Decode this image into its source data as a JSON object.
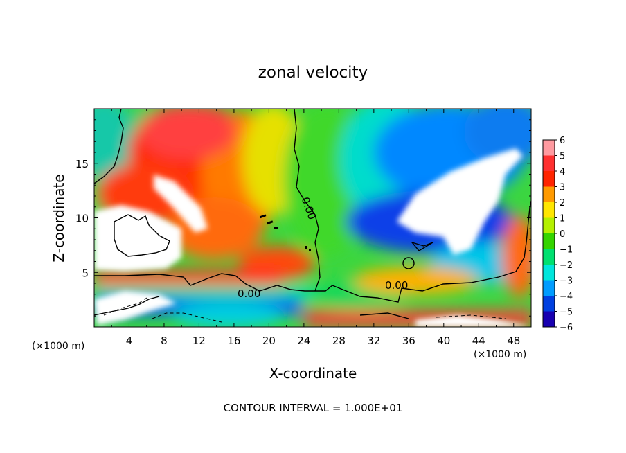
{
  "chart_data": {
    "type": "heatmap",
    "title": "zonal velocity",
    "xlabel": "X-coordinate",
    "ylabel": "Z-coordinate",
    "x_unit_left": "(×1000 m)",
    "x_unit_right": "(×1000 m)",
    "xlim": [
      0,
      50
    ],
    "ylim": [
      0,
      20
    ],
    "x_ticks": [
      4,
      8,
      12,
      16,
      20,
      24,
      28,
      32,
      36,
      40,
      44,
      48
    ],
    "y_ticks": [
      5,
      10,
      15
    ],
    "colorbar": {
      "levels": [
        6,
        5,
        4,
        3,
        2,
        1,
        0,
        -1,
        -2,
        -3,
        -4,
        -5,
        -6
      ],
      "colors": [
        "#ff9aa0",
        "#ff3030",
        "#ff2400",
        "#ff9a00",
        "#ffe600",
        "#b4f000",
        "#34d400",
        "#00e070",
        "#00e6dc",
        "#009cff",
        "#0040e0",
        "#1800b0",
        "#6a00b0"
      ],
      "clipped_color": "#ffffff"
    },
    "contour_labels": [
      "0.00",
      "0.00",
      "0.00"
    ],
    "footer": "CONTOUR INTERVAL = 1.000E+01",
    "grid": false
  }
}
